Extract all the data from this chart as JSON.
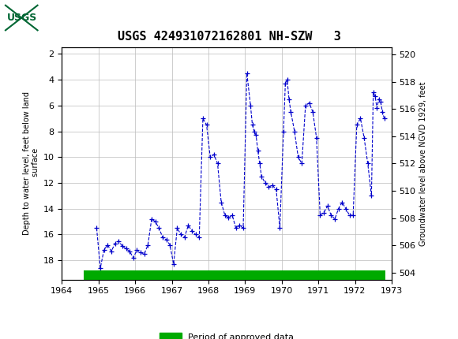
{
  "title": "USGS 424931072162801 NH-SZW   3",
  "ylabel_left": "Depth to water level, feet below land\n surface",
  "ylabel_right": "Groundwater level above NGVD 1929, feet",
  "xlim": [
    1964,
    1973
  ],
  "ylim_left": [
    19.5,
    1.5
  ],
  "ylim_right": [
    503.5,
    520.5
  ],
  "yticks_left": [
    2,
    4,
    6,
    8,
    10,
    12,
    14,
    16,
    18
  ],
  "yticks_right": [
    504,
    506,
    508,
    510,
    512,
    514,
    516,
    518,
    520
  ],
  "xticks": [
    1964,
    1965,
    1966,
    1967,
    1968,
    1969,
    1970,
    1971,
    1972,
    1973
  ],
  "line_color": "#0000CC",
  "marker": "+",
  "linestyle": "--",
  "header_color": "#006633",
  "legend_label": "Period of approved data",
  "legend_color": "#00AA00",
  "approved_bar_x_start": 1964.6,
  "approved_bar_x_end": 1972.83,
  "data_x": [
    1964.95,
    1965.05,
    1965.15,
    1965.25,
    1965.35,
    1965.45,
    1965.55,
    1965.65,
    1965.75,
    1965.85,
    1965.95,
    1966.05,
    1966.15,
    1966.25,
    1966.35,
    1966.45,
    1966.55,
    1966.65,
    1966.75,
    1966.85,
    1966.95,
    1967.05,
    1967.15,
    1967.25,
    1967.35,
    1967.45,
    1967.55,
    1967.65,
    1967.75,
    1967.85,
    1967.95,
    1968.05,
    1968.15,
    1968.25,
    1968.35,
    1968.45,
    1968.55,
    1968.65,
    1968.75,
    1968.85,
    1968.95,
    1969.05,
    1969.15,
    1969.2,
    1969.25,
    1969.3,
    1969.35,
    1969.4,
    1969.45,
    1969.55,
    1969.65,
    1969.75,
    1969.85,
    1969.95,
    1970.05,
    1970.1,
    1970.15,
    1970.2,
    1970.25,
    1970.35,
    1970.45,
    1970.55,
    1970.65,
    1970.75,
    1970.85,
    1970.95,
    1971.05,
    1971.15,
    1971.25,
    1971.35,
    1971.45,
    1971.55,
    1971.65,
    1971.75,
    1971.85,
    1971.95,
    1972.05,
    1972.15,
    1972.25,
    1972.35,
    1972.45,
    1972.5,
    1972.55,
    1972.6,
    1972.65,
    1972.7,
    1972.75,
    1972.8
  ],
  "data_y": [
    15.5,
    18.6,
    17.2,
    16.8,
    17.3,
    16.7,
    16.5,
    16.9,
    17.1,
    17.3,
    17.8,
    17.2,
    17.4,
    17.5,
    16.8,
    14.8,
    15.0,
    15.5,
    16.2,
    16.4,
    16.8,
    18.3,
    15.5,
    16.0,
    16.2,
    15.3,
    15.7,
    16.0,
    16.2,
    7.0,
    7.5,
    10.0,
    9.8,
    10.5,
    13.5,
    14.5,
    14.7,
    14.5,
    15.5,
    15.3,
    15.5,
    3.5,
    6.0,
    7.5,
    8.0,
    8.3,
    9.5,
    10.5,
    11.5,
    12.0,
    12.3,
    12.2,
    12.5,
    15.5,
    8.0,
    4.3,
    4.0,
    5.5,
    6.5,
    8.0,
    10.0,
    10.5,
    6.0,
    5.8,
    6.5,
    8.5,
    14.5,
    14.3,
    13.8,
    14.5,
    14.8,
    14.0,
    13.5,
    14.0,
    14.5,
    14.5,
    7.5,
    7.0,
    8.5,
    10.5,
    13.0,
    5.0,
    5.3,
    6.2,
    5.5,
    5.7,
    6.5,
    7.0
  ]
}
